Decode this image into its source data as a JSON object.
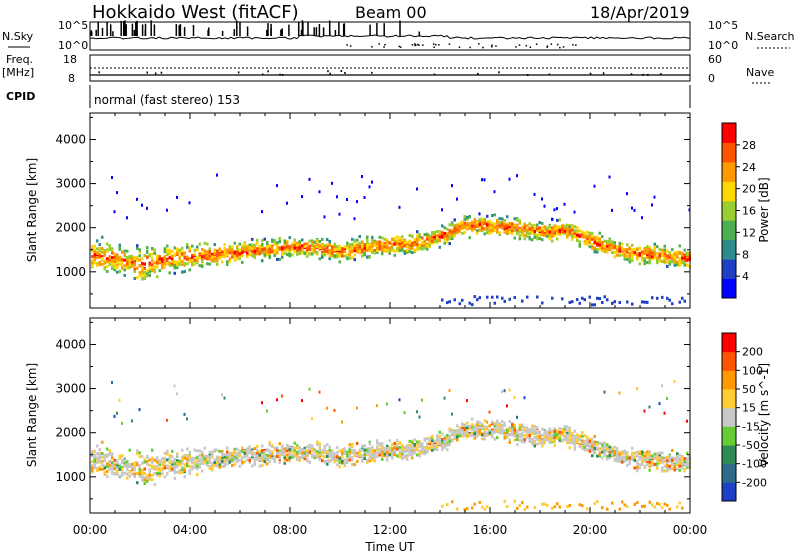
{
  "header": {
    "station": "Hokkaido West (fitACF)",
    "beam": "Beam 00",
    "date": "18/Apr/2019"
  },
  "ops": {
    "nsky_label": "N.Sky",
    "nsearch_label": "N.Search",
    "noise_ticks": [
      "10^5",
      "10^0"
    ],
    "freq_label_1": "Freq.",
    "freq_label_2": "[MHz]",
    "freq_ticks": [
      "18",
      "8"
    ],
    "nave_label": "Nave",
    "nave_ticks": [
      "60",
      "0"
    ],
    "cpid_label": "CPID",
    "cpid_text": "normal (fast stereo) 153"
  },
  "xaxis": {
    "label": "Time UT",
    "ticks": [
      "00:00",
      "04:00",
      "08:00",
      "12:00",
      "16:00",
      "20:00",
      "00:00"
    ]
  },
  "chart_data": [
    {
      "type": "heatmap",
      "name": "power",
      "ylabel": "Slant Range [km]",
      "yticks": [
        1000,
        2000,
        3000,
        4000
      ],
      "ylim": [
        180,
        4600
      ],
      "xlim": [
        0,
        24
      ],
      "colorbar_label": "Power [dB]",
      "colorbar_ticks": [
        "28",
        "24",
        "20",
        "16",
        "12",
        "8",
        "4"
      ],
      "colorscale": [
        "#0000ff",
        "#1f3fc4",
        "#2e8b8b",
        "#4caf50",
        "#9acd32",
        "#ffd700",
        "#ff9900",
        "#ff5500",
        "#ff0000"
      ],
      "echo_band": {
        "hours": [
          0,
          1,
          2,
          3,
          4,
          5,
          6,
          7,
          8,
          9,
          10,
          11,
          12,
          13,
          14,
          15,
          16,
          17,
          18,
          19,
          20,
          21,
          22,
          23,
          24
        ],
        "center_km": [
          1400,
          1300,
          1150,
          1300,
          1350,
          1400,
          1450,
          1500,
          1550,
          1550,
          1450,
          1550,
          1600,
          1650,
          1800,
          2050,
          2050,
          2000,
          1900,
          1950,
          1700,
          1500,
          1400,
          1350,
          1300
        ],
        "width_km": [
          450,
          450,
          500,
          450,
          400,
          350,
          350,
          300,
          300,
          300,
          300,
          300,
          300,
          300,
          300,
          300,
          300,
          300,
          300,
          300,
          300,
          300,
          300,
          300,
          300
        ]
      }
    },
    {
      "type": "heatmap",
      "name": "velocity",
      "ylabel": "Slant Range [km]",
      "yticks": [
        1000,
        2000,
        3000,
        4000
      ],
      "ylim": [
        180,
        4600
      ],
      "xlim": [
        0,
        24
      ],
      "colorbar_label": "Velocity [m s^-1]",
      "colorbar_ticks": [
        "200",
        "100",
        "50",
        "15",
        "-15",
        "-50",
        "-100",
        "-200"
      ],
      "colorscale": [
        "#1f3fc4",
        "#2e6b8b",
        "#2e8b57",
        "#66cc33",
        "#c8c8c8",
        "#ffcc33",
        "#ff9900",
        "#ff5500",
        "#ff0000"
      ],
      "echo_band": {
        "hours": [
          0,
          1,
          2,
          3,
          4,
          5,
          6,
          7,
          8,
          9,
          10,
          11,
          12,
          13,
          14,
          15,
          16,
          17,
          18,
          19,
          20,
          21,
          22,
          23,
          24
        ],
        "center_km": [
          1400,
          1300,
          1150,
          1300,
          1350,
          1400,
          1450,
          1500,
          1550,
          1550,
          1450,
          1550,
          1600,
          1650,
          1800,
          2050,
          2050,
          2000,
          1900,
          1950,
          1700,
          1500,
          1400,
          1350,
          1300
        ],
        "width_km": [
          450,
          450,
          500,
          450,
          400,
          350,
          350,
          300,
          300,
          300,
          300,
          300,
          300,
          300,
          300,
          300,
          300,
          300,
          300,
          300,
          300,
          300,
          300,
          300,
          300
        ]
      }
    }
  ]
}
